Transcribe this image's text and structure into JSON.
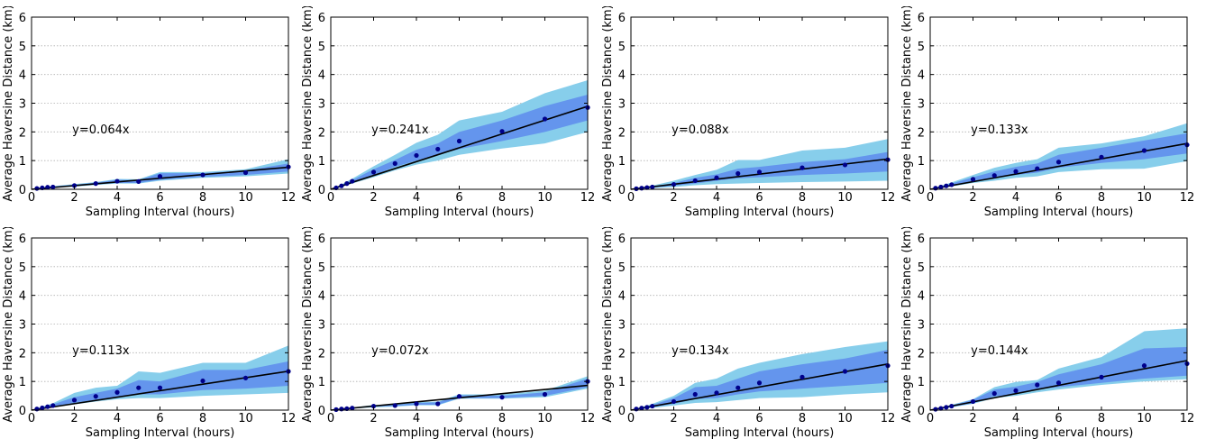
{
  "colors": {
    "outer_band": "#87ceeb",
    "inner_band": "#6495ed",
    "points": "#00008b",
    "fit_line": "#000000",
    "grid": "#b0b0b0"
  },
  "chart_data": [
    {
      "type": "line",
      "annotation": "y=0.064x",
      "slope": 0.064,
      "xlabel": "Sampling Interval (hours)",
      "ylabel": "Average Haversine Distance (km)",
      "xlim": [
        0,
        12
      ],
      "ylim": [
        0,
        6
      ],
      "xticks": [
        0,
        2,
        4,
        6,
        8,
        10,
        12
      ],
      "yticks": [
        0,
        1,
        2,
        3,
        4,
        5,
        6
      ],
      "grid": "horizontal dotted",
      "x": [
        0.25,
        0.5,
        0.75,
        1,
        2,
        3,
        4,
        5,
        6,
        8,
        10,
        12
      ],
      "points": [
        0.03,
        0.05,
        0.07,
        0.08,
        0.13,
        0.2,
        0.28,
        0.27,
        0.45,
        0.5,
        0.58,
        0.78
      ],
      "inner_band": {
        "lower": [
          0.02,
          0.04,
          0.05,
          0.07,
          0.11,
          0.17,
          0.22,
          0.22,
          0.33,
          0.43,
          0.5,
          0.62
        ],
        "upper": [
          0.04,
          0.06,
          0.08,
          0.1,
          0.16,
          0.23,
          0.33,
          0.32,
          0.56,
          0.56,
          0.66,
          0.9
        ]
      },
      "outer_band": {
        "lower": [
          0.01,
          0.03,
          0.04,
          0.06,
          0.09,
          0.15,
          0.2,
          0.2,
          0.3,
          0.4,
          0.45,
          0.55
        ],
        "upper": [
          0.05,
          0.07,
          0.09,
          0.11,
          0.18,
          0.25,
          0.36,
          0.35,
          0.6,
          0.6,
          0.7,
          1.05
        ]
      }
    },
    {
      "type": "line",
      "annotation": "y=0.241x",
      "slope": 0.241,
      "xlabel": "Sampling Interval (hours)",
      "ylabel": "Average Haversine Distance (km)",
      "xlim": [
        0,
        12
      ],
      "ylim": [
        0,
        6
      ],
      "xticks": [
        0,
        2,
        4,
        6,
        8,
        10,
        12
      ],
      "yticks": [
        0,
        1,
        2,
        3,
        4,
        5,
        6
      ],
      "grid": "horizontal dotted",
      "x": [
        0.25,
        0.5,
        0.75,
        1,
        2,
        3,
        4,
        5,
        6,
        8,
        10,
        12
      ],
      "points": [
        0.05,
        0.12,
        0.2,
        0.28,
        0.6,
        0.9,
        1.18,
        1.4,
        1.68,
        2.02,
        2.45,
        2.85
      ],
      "inner_band": {
        "lower": [
          0.04,
          0.1,
          0.17,
          0.24,
          0.5,
          0.78,
          1.0,
          1.2,
          1.4,
          1.68,
          2.0,
          2.4
        ],
        "upper": [
          0.07,
          0.14,
          0.23,
          0.32,
          0.7,
          1.02,
          1.38,
          1.6,
          2.0,
          2.4,
          2.9,
          3.3
        ]
      },
      "outer_band": {
        "lower": [
          0.03,
          0.08,
          0.14,
          0.2,
          0.42,
          0.66,
          0.86,
          1.0,
          1.2,
          1.42,
          1.6,
          2.0
        ],
        "upper": [
          0.08,
          0.17,
          0.27,
          0.37,
          0.8,
          1.2,
          1.62,
          1.9,
          2.4,
          2.7,
          3.35,
          3.8
        ]
      }
    },
    {
      "type": "line",
      "annotation": "y=0.088x",
      "slope": 0.088,
      "xlabel": "Sampling Interval (hours)",
      "ylabel": "Average Haversine Distance (km)",
      "xlim": [
        0,
        12
      ],
      "ylim": [
        0,
        6
      ],
      "xticks": [
        0,
        2,
        4,
        6,
        8,
        10,
        12
      ],
      "yticks": [
        0,
        1,
        2,
        3,
        4,
        5,
        6
      ],
      "grid": "horizontal dotted",
      "x": [
        0.25,
        0.5,
        0.75,
        1,
        2,
        3,
        4,
        5,
        6,
        8,
        10,
        12
      ],
      "points": [
        0.02,
        0.04,
        0.06,
        0.08,
        0.17,
        0.3,
        0.4,
        0.55,
        0.6,
        0.75,
        0.85,
        1.03
      ],
      "inner_band": {
        "lower": [
          0.01,
          0.03,
          0.05,
          0.06,
          0.12,
          0.2,
          0.3,
          0.38,
          0.42,
          0.5,
          0.55,
          0.62
        ],
        "upper": [
          0.03,
          0.05,
          0.08,
          0.1,
          0.22,
          0.4,
          0.52,
          0.72,
          0.78,
          0.95,
          1.05,
          1.3
        ]
      },
      "outer_band": {
        "lower": [
          0.01,
          0.02,
          0.03,
          0.04,
          0.08,
          0.14,
          0.18,
          0.2,
          0.22,
          0.25,
          0.27,
          0.3
        ],
        "upper": [
          0.04,
          0.07,
          0.1,
          0.13,
          0.3,
          0.5,
          0.68,
          1.02,
          1.02,
          1.35,
          1.45,
          1.75
        ]
      }
    },
    {
      "type": "line",
      "annotation": "y=0.133x",
      "slope": 0.133,
      "xlabel": "Sampling Interval (hours)",
      "ylabel": "Average Haversine Distance (km)",
      "xlim": [
        0,
        12
      ],
      "ylim": [
        0,
        6
      ],
      "xticks": [
        0,
        2,
        4,
        6,
        8,
        10,
        12
      ],
      "yticks": [
        0,
        1,
        2,
        3,
        4,
        5,
        6
      ],
      "grid": "horizontal dotted",
      "x": [
        0.25,
        0.5,
        0.75,
        1,
        2,
        3,
        4,
        5,
        6,
        8,
        10,
        12
      ],
      "points": [
        0.04,
        0.08,
        0.12,
        0.16,
        0.35,
        0.48,
        0.62,
        0.72,
        0.95,
        1.12,
        1.35,
        1.55
      ],
      "inner_band": {
        "lower": [
          0.03,
          0.06,
          0.1,
          0.13,
          0.28,
          0.38,
          0.5,
          0.58,
          0.75,
          0.92,
          1.05,
          1.25
        ],
        "upper": [
          0.05,
          0.1,
          0.15,
          0.2,
          0.42,
          0.62,
          0.78,
          0.9,
          1.2,
          1.45,
          1.7,
          1.95
        ]
      },
      "outer_band": {
        "lower": [
          0.02,
          0.05,
          0.08,
          0.1,
          0.22,
          0.3,
          0.4,
          0.45,
          0.6,
          0.7,
          0.72,
          0.98
        ],
        "upper": [
          0.06,
          0.12,
          0.18,
          0.24,
          0.5,
          0.75,
          0.92,
          1.05,
          1.45,
          1.6,
          1.85,
          2.3
        ]
      }
    },
    {
      "type": "line",
      "annotation": "y=0.113x",
      "slope": 0.113,
      "xlabel": "Sampling Interval (hours)",
      "ylabel": "Average Haversine Distance (km)",
      "xlim": [
        0,
        12
      ],
      "ylim": [
        0,
        6
      ],
      "xticks": [
        0,
        2,
        4,
        6,
        8,
        10,
        12
      ],
      "yticks": [
        0,
        1,
        2,
        3,
        4,
        5,
        6
      ],
      "grid": "horizontal dotted",
      "x": [
        0.25,
        0.5,
        0.75,
        1,
        2,
        3,
        4,
        5,
        6,
        8,
        10,
        12
      ],
      "points": [
        0.04,
        0.08,
        0.12,
        0.16,
        0.35,
        0.48,
        0.62,
        0.78,
        0.78,
        1.02,
        1.12,
        1.35
      ],
      "inner_band": {
        "lower": [
          0.03,
          0.06,
          0.09,
          0.12,
          0.26,
          0.36,
          0.45,
          0.55,
          0.55,
          0.7,
          0.75,
          0.85
        ],
        "upper": [
          0.05,
          0.1,
          0.15,
          0.2,
          0.45,
          0.6,
          0.75,
          1.05,
          1.0,
          1.4,
          1.4,
          1.7
        ]
      },
      "outer_band": {
        "lower": [
          0.02,
          0.05,
          0.07,
          0.1,
          0.2,
          0.3,
          0.38,
          0.42,
          0.42,
          0.5,
          0.55,
          0.6
        ],
        "upper": [
          0.06,
          0.12,
          0.18,
          0.24,
          0.6,
          0.78,
          0.85,
          1.35,
          1.3,
          1.65,
          1.65,
          2.25
        ]
      }
    },
    {
      "type": "line",
      "annotation": "y=0.072x",
      "slope": 0.072,
      "xlabel": "Sampling Interval (hours)",
      "ylabel": "Average Haversine Distance (km)",
      "xlim": [
        0,
        12
      ],
      "ylim": [
        0,
        6
      ],
      "xticks": [
        0,
        2,
        4,
        6,
        8,
        10,
        12
      ],
      "yticks": [
        0,
        1,
        2,
        3,
        4,
        5,
        6
      ],
      "grid": "horizontal dotted",
      "x": [
        0.25,
        0.5,
        0.75,
        1,
        2,
        3,
        4,
        5,
        6,
        8,
        10,
        12
      ],
      "points": [
        0.02,
        0.04,
        0.05,
        0.07,
        0.14,
        0.16,
        0.22,
        0.22,
        0.48,
        0.45,
        0.55,
        1.0
      ],
      "inner_band": {
        "lower": [
          0.015,
          0.03,
          0.04,
          0.06,
          0.12,
          0.14,
          0.19,
          0.19,
          0.42,
          0.42,
          0.5,
          0.8
        ],
        "upper": [
          0.025,
          0.05,
          0.06,
          0.08,
          0.16,
          0.18,
          0.25,
          0.27,
          0.52,
          0.5,
          0.62,
          1.1
        ]
      },
      "outer_band": {
        "lower": [
          0.01,
          0.02,
          0.03,
          0.05,
          0.1,
          0.12,
          0.17,
          0.17,
          0.4,
          0.4,
          0.45,
          0.75
        ],
        "upper": [
          0.03,
          0.06,
          0.07,
          0.09,
          0.18,
          0.2,
          0.28,
          0.3,
          0.55,
          0.55,
          0.68,
          1.18
        ]
      }
    },
    {
      "type": "line",
      "annotation": "y=0.134x",
      "slope": 0.134,
      "xlabel": "Sampling Interval (hours)",
      "ylabel": "Average Haversine Distance (km)",
      "xlim": [
        0,
        12
      ],
      "ylim": [
        0,
        6
      ],
      "xticks": [
        0,
        2,
        4,
        6,
        8,
        10,
        12
      ],
      "yticks": [
        0,
        1,
        2,
        3,
        4,
        5,
        6
      ],
      "grid": "horizontal dotted",
      "x": [
        0.25,
        0.5,
        0.75,
        1,
        2,
        3,
        4,
        5,
        6,
        8,
        10,
        12
      ],
      "points": [
        0.04,
        0.07,
        0.1,
        0.14,
        0.3,
        0.55,
        0.6,
        0.78,
        0.95,
        1.15,
        1.35,
        1.55
      ],
      "inner_band": {
        "lower": [
          0.03,
          0.05,
          0.08,
          0.1,
          0.22,
          0.38,
          0.42,
          0.55,
          0.65,
          0.75,
          0.85,
          0.95
        ],
        "upper": [
          0.05,
          0.09,
          0.13,
          0.18,
          0.42,
          0.8,
          0.85,
          1.1,
          1.35,
          1.6,
          1.8,
          2.1
        ]
      },
      "outer_band": {
        "lower": [
          0.02,
          0.04,
          0.06,
          0.08,
          0.16,
          0.25,
          0.28,
          0.35,
          0.42,
          0.45,
          0.55,
          0.62
        ],
        "upper": [
          0.06,
          0.11,
          0.16,
          0.22,
          0.5,
          0.95,
          1.1,
          1.45,
          1.65,
          1.95,
          2.2,
          2.4
        ]
      }
    },
    {
      "type": "line",
      "annotation": "y=0.144x",
      "slope": 0.144,
      "xlabel": "Sampling Interval (hours)",
      "ylabel": "Average Haversine Distance (km)",
      "xlim": [
        0,
        12
      ],
      "ylim": [
        0,
        6
      ],
      "xticks": [
        0,
        2,
        4,
        6,
        8,
        10,
        12
      ],
      "yticks": [
        0,
        1,
        2,
        3,
        4,
        5,
        6
      ],
      "grid": "horizontal dotted",
      "x": [
        0.25,
        0.5,
        0.75,
        1,
        2,
        3,
        4,
        5,
        6,
        8,
        10,
        12
      ],
      "points": [
        0.03,
        0.06,
        0.1,
        0.14,
        0.3,
        0.58,
        0.68,
        0.88,
        0.95,
        1.15,
        1.55,
        1.62
      ],
      "inner_band": {
        "lower": [
          0.02,
          0.05,
          0.08,
          0.11,
          0.24,
          0.48,
          0.55,
          0.72,
          0.8,
          0.95,
          1.1,
          1.2
        ],
        "upper": [
          0.04,
          0.08,
          0.12,
          0.17,
          0.36,
          0.72,
          0.82,
          0.98,
          1.25,
          1.6,
          2.15,
          2.2
        ]
      },
      "outer_band": {
        "lower": [
          0.015,
          0.04,
          0.07,
          0.1,
          0.22,
          0.42,
          0.5,
          0.62,
          0.72,
          0.88,
          1.0,
          1.08
        ],
        "upper": [
          0.05,
          0.09,
          0.14,
          0.19,
          0.38,
          0.8,
          0.98,
          1.05,
          1.45,
          1.85,
          2.75,
          2.85
        ]
      }
    }
  ]
}
